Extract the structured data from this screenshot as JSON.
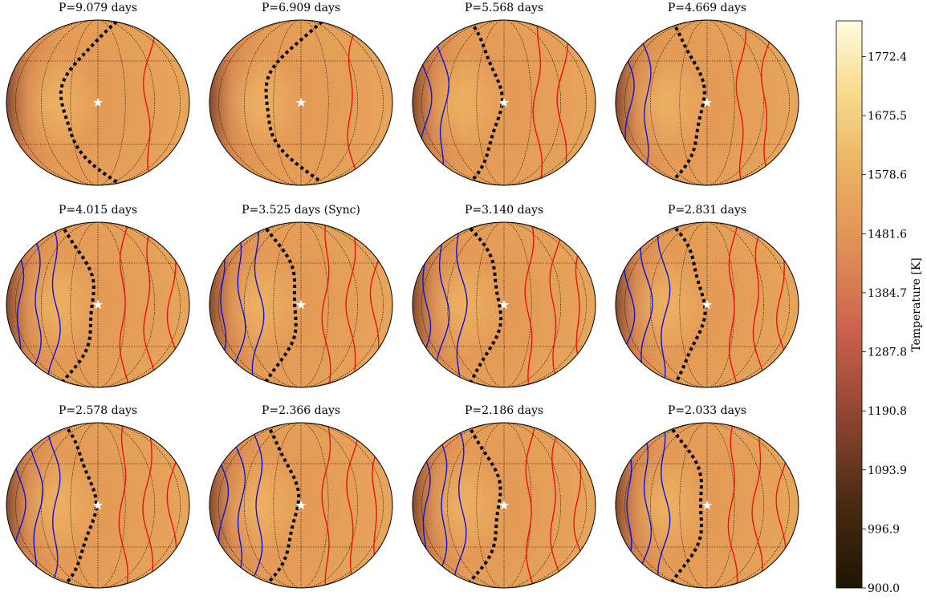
{
  "panels": [
    {
      "title": "P=9.079 days"
    },
    {
      "title": "P=6.909 days"
    },
    {
      "title": "P=5.568 days"
    },
    {
      "title": "P=4.669 days"
    },
    {
      "title": "P=4.015 days"
    },
    {
      "title": "P=3.525 days (Sync)"
    },
    {
      "title": "P=3.140 days"
    },
    {
      "title": "P=2.831 days"
    },
    {
      "title": "P=2.578 days"
    },
    {
      "title": "P=2.366 days"
    },
    {
      "title": "P=2.186 days"
    },
    {
      "title": "P=2.033 days"
    }
  ],
  "colorbar": {
    "label": "Temperature [K]",
    "range": [
      900,
      1831
    ],
    "ticks": [
      {
        "value": 900,
        "label": "900.0"
      },
      {
        "value": 996.9,
        "label": "996.9"
      },
      {
        "value": 1093.9,
        "label": "1093.9"
      },
      {
        "value": 1190.8,
        "label": "1190.8"
      },
      {
        "value": 1287.8,
        "label": "1287.8"
      },
      {
        "value": 1384.7,
        "label": "1384.7"
      },
      {
        "value": 1481.6,
        "label": "1481.6"
      },
      {
        "value": 1578.6,
        "label": "1578.6"
      },
      {
        "value": 1675.5,
        "label": "1675.5"
      },
      {
        "value": 1772.4,
        "label": "1772.4"
      }
    ]
  }
}
